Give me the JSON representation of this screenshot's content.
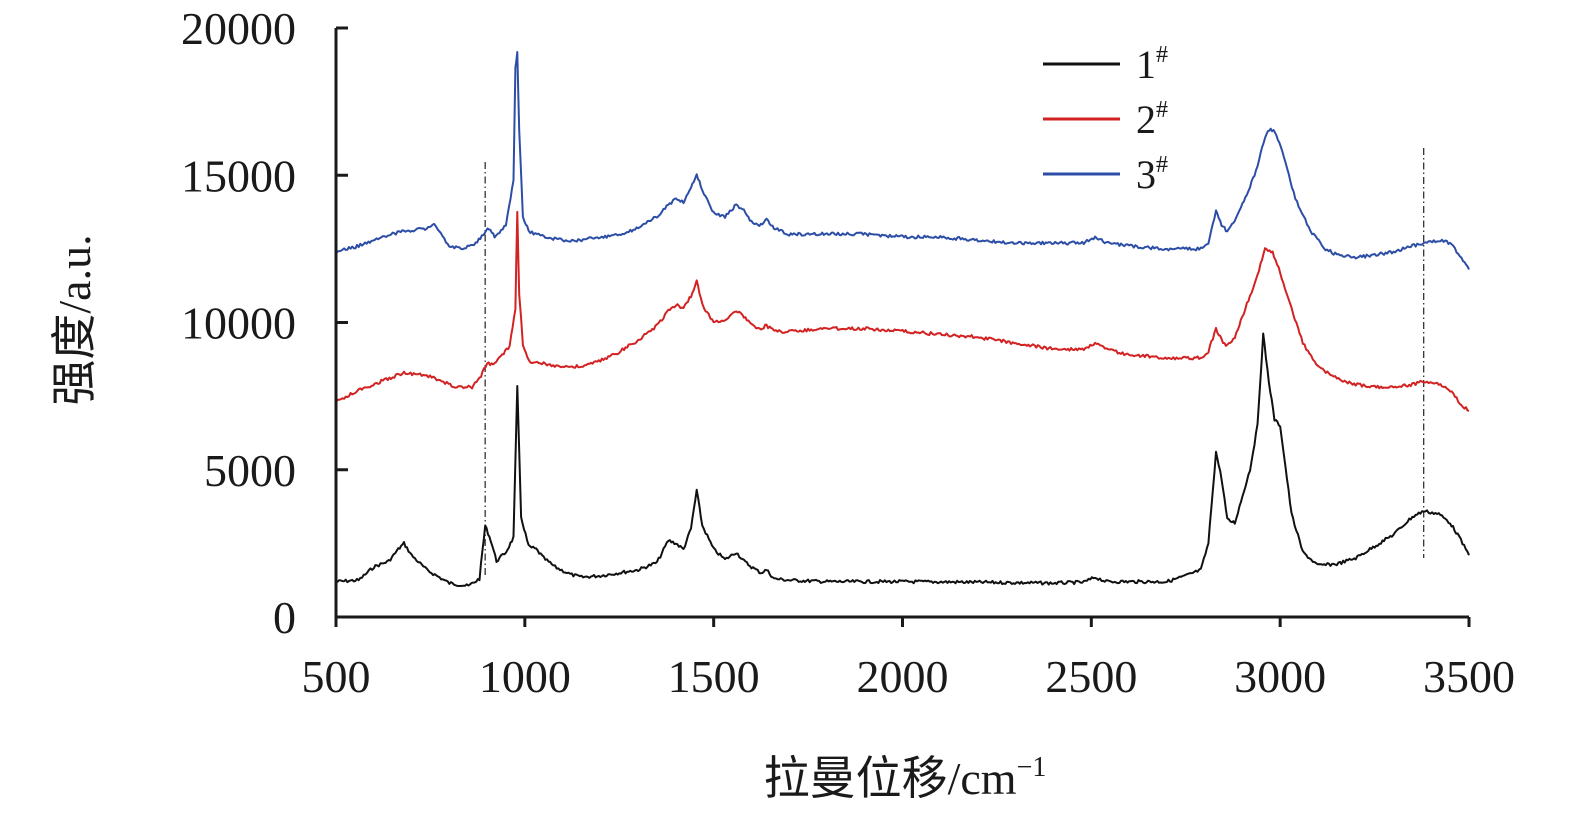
{
  "chart_data": {
    "type": "line",
    "title": "",
    "xlabel": "拉曼位移/cm",
    "xlabel_sup": "−1",
    "ylabel": "强度/a.u.",
    "xlim": [
      500,
      3500
    ],
    "ylim": [
      0,
      20000
    ],
    "xticks": [
      500,
      1000,
      1500,
      2000,
      2500,
      3000,
      3500
    ],
    "yticks": [
      0,
      5000,
      10000,
      15000,
      20000
    ],
    "grid": false,
    "legend_position": "top-right",
    "reference_lines_x": [
      895,
      3380
    ],
    "series": [
      {
        "name": "1",
        "name_sup": "#",
        "color": "#111111",
        "x": [
          500,
          560,
          600,
          640,
          665,
          680,
          700,
          740,
          800,
          850,
          880,
          895,
          910,
          925,
          950,
          970,
          980,
          990,
          1010,
          1030,
          1050,
          1080,
          1120,
          1150,
          1200,
          1250,
          1300,
          1350,
          1380,
          1400,
          1420,
          1440,
          1455,
          1470,
          1500,
          1530,
          1560,
          1580,
          1600,
          1625,
          1640,
          1660,
          1700,
          1800,
          2000,
          2200,
          2400,
          2480,
          2510,
          2540,
          2600,
          2700,
          2750,
          2790,
          2810,
          2830,
          2845,
          2860,
          2880,
          2900,
          2920,
          2940,
          2955,
          2970,
          2985,
          3000,
          3010,
          3030,
          3060,
          3100,
          3150,
          3200,
          3250,
          3300,
          3350,
          3380,
          3420,
          3450,
          3470,
          3500
        ],
        "y": [
          1200,
          1250,
          1700,
          1900,
          2300,
          2500,
          2100,
          1600,
          1150,
          1050,
          1300,
          3100,
          2600,
          1900,
          2200,
          2700,
          7800,
          3400,
          2400,
          2300,
          2000,
          1700,
          1450,
          1350,
          1400,
          1500,
          1600,
          1850,
          2600,
          2500,
          2300,
          3000,
          4300,
          3100,
          2300,
          1950,
          2200,
          1900,
          1700,
          1500,
          1600,
          1300,
          1250,
          1200,
          1200,
          1180,
          1150,
          1180,
          1350,
          1200,
          1200,
          1200,
          1400,
          1600,
          2500,
          5600,
          4700,
          3300,
          3200,
          4100,
          5000,
          6500,
          9600,
          8000,
          6700,
          6500,
          5500,
          3500,
          2200,
          1750,
          1800,
          2000,
          2400,
          2800,
          3400,
          3600,
          3500,
          3200,
          2800,
          2100
        ]
      },
      {
        "name": "2",
        "name_sup": "#",
        "color": "#d22222",
        "x": [
          500,
          560,
          620,
          680,
          740,
          780,
          820,
          860,
          880,
          900,
          920,
          940,
          960,
          975,
          980,
          985,
          995,
          1010,
          1050,
          1100,
          1150,
          1200,
          1250,
          1300,
          1350,
          1380,
          1400,
          1420,
          1440,
          1455,
          1470,
          1500,
          1530,
          1560,
          1580,
          1600,
          1625,
          1640,
          1660,
          1700,
          1800,
          1900,
          2000,
          2100,
          2200,
          2300,
          2400,
          2480,
          2510,
          2540,
          2600,
          2700,
          2790,
          2810,
          2830,
          2845,
          2860,
          2880,
          2900,
          2920,
          2940,
          2960,
          2980,
          3000,
          3030,
          3060,
          3100,
          3150,
          3200,
          3250,
          3300,
          3350,
          3380,
          3420,
          3450,
          3480,
          3500
        ],
        "y": [
          7300,
          7700,
          8000,
          8300,
          8200,
          8000,
          7800,
          7800,
          8100,
          8600,
          8600,
          8900,
          9200,
          10500,
          13800,
          11000,
          9200,
          8700,
          8600,
          8500,
          8500,
          8700,
          9000,
          9400,
          9900,
          10400,
          10600,
          10500,
          10900,
          11400,
          10600,
          10000,
          10100,
          10400,
          10200,
          9900,
          9800,
          9900,
          9700,
          9700,
          9800,
          9800,
          9700,
          9600,
          9500,
          9300,
          9100,
          9100,
          9300,
          9100,
          8900,
          8800,
          8800,
          9000,
          9800,
          9400,
          9200,
          9500,
          10200,
          10900,
          11600,
          12500,
          12400,
          11700,
          10500,
          9300,
          8500,
          8100,
          7900,
          7800,
          7800,
          7900,
          8000,
          7900,
          7700,
          7200,
          7000
        ]
      },
      {
        "name": "3",
        "name_sup": "#",
        "color": "#2d4ea6",
        "x": [
          500,
          560,
          620,
          680,
          740,
          760,
          800,
          840,
          870,
          890,
          905,
          920,
          950,
          970,
          975,
          980,
          985,
          995,
          1010,
          1050,
          1100,
          1150,
          1200,
          1250,
          1300,
          1350,
          1380,
          1400,
          1420,
          1440,
          1455,
          1470,
          1500,
          1530,
          1560,
          1580,
          1600,
          1625,
          1640,
          1660,
          1700,
          1800,
          1900,
          2000,
          2100,
          2200,
          2300,
          2400,
          2480,
          2510,
          2540,
          2600,
          2700,
          2790,
          2810,
          2830,
          2845,
          2860,
          2880,
          2900,
          2920,
          2940,
          2960,
          2975,
          2990,
          3010,
          3040,
          3080,
          3120,
          3150,
          3200,
          3250,
          3300,
          3350,
          3380,
          3420,
          3450,
          3480,
          3500
        ],
        "y": [
          12400,
          12600,
          12900,
          13100,
          13200,
          13300,
          12600,
          12500,
          12700,
          13000,
          13200,
          12900,
          13300,
          14800,
          18600,
          19200,
          16500,
          13600,
          13100,
          12900,
          12800,
          12800,
          12900,
          13000,
          13200,
          13600,
          14000,
          14200,
          14100,
          14600,
          15000,
          14500,
          13700,
          13600,
          14000,
          13800,
          13400,
          13300,
          13500,
          13200,
          13000,
          13000,
          13000,
          12900,
          12900,
          12800,
          12700,
          12700,
          12700,
          12900,
          12700,
          12600,
          12500,
          12500,
          12700,
          13800,
          13300,
          13100,
          13500,
          14000,
          14600,
          15300,
          16300,
          16600,
          16400,
          15600,
          14200,
          13100,
          12500,
          12300,
          12200,
          12300,
          12400,
          12600,
          12700,
          12800,
          12700,
          12200,
          11800
        ]
      }
    ]
  }
}
